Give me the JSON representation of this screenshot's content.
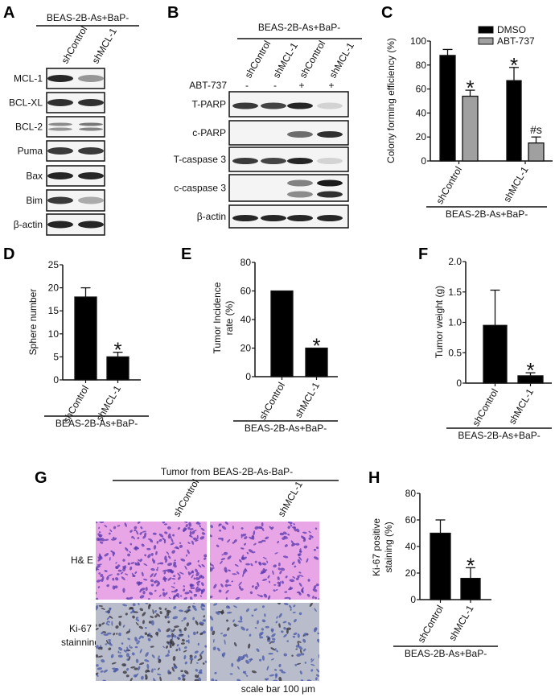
{
  "panel_labels": {
    "A": "A",
    "B": "B",
    "C": "C",
    "D": "D",
    "E": "E",
    "F": "F",
    "G": "G",
    "H": "H"
  },
  "group_label": "BEAS-2B-As+BaP-",
  "lanes": [
    "shControl",
    "shMCL-1"
  ],
  "blot_A": {
    "rows": [
      {
        "label": "MCL-1",
        "bands": [
          0.95,
          0.4
        ]
      },
      {
        "label": "BCL-XL",
        "bands": [
          0.9,
          0.9
        ]
      },
      {
        "label": "BCL-2",
        "bands": [
          0.45,
          0.55
        ]
      },
      {
        "label": "Puma",
        "bands": [
          0.85,
          0.85
        ]
      },
      {
        "label": "Bax",
        "bands": [
          0.95,
          0.95
        ]
      },
      {
        "label": "Bim",
        "bands": [
          0.85,
          0.3
        ]
      },
      {
        "label": "β-actin",
        "bands": [
          0.95,
          0.95
        ]
      }
    ]
  },
  "blot_B": {
    "lanes": [
      "shControl",
      "shMCL-1",
      "shControl",
      "shMCL-1"
    ],
    "treatment_label": "ABT-737",
    "treatment": [
      "-",
      "-",
      "+",
      "+"
    ],
    "rows": [
      {
        "label": "T-PARP",
        "bands": [
          0.85,
          0.8,
          0.95,
          0.1
        ]
      },
      {
        "label": "c-PARP",
        "bands": [
          0,
          0,
          0.6,
          0.9
        ]
      },
      {
        "label": "T-caspase 3",
        "bands": [
          0.85,
          0.8,
          0.95,
          0.1
        ]
      },
      {
        "label": "c-caspase 3",
        "bands": [
          0,
          0,
          0.5,
          1.0
        ]
      },
      {
        "label": "β-actin",
        "bands": [
          0.95,
          0.95,
          0.95,
          0.95
        ]
      }
    ]
  },
  "chart_data": [
    {
      "id": "C",
      "type": "bar",
      "ylabel": "Colony forming efficiency (%)",
      "ylim": [
        0,
        100
      ],
      "yticks": [
        0,
        20,
        40,
        60,
        80,
        100
      ],
      "categories": [
        "shControl",
        "shMCL-1"
      ],
      "xlabel": "BEAS-2B-As+BaP-",
      "legend": "top-right",
      "series": [
        {
          "name": "DMSO",
          "color": "#000000",
          "values": [
            88,
            67
          ],
          "errors": [
            5,
            11
          ],
          "annotations": [
            "",
            "*"
          ]
        },
        {
          "name": "ABT-737",
          "color": "#a0a0a0",
          "values": [
            54,
            15
          ],
          "errors": [
            5,
            5
          ],
          "annotations": [
            "*",
            "#s"
          ]
        }
      ]
    },
    {
      "id": "D",
      "type": "bar",
      "ylabel": "Sphere number",
      "ylim": [
        0,
        25
      ],
      "yticks": [
        0,
        5,
        10,
        15,
        20,
        25
      ],
      "categories": [
        "shControl",
        "shMCL-1"
      ],
      "xlabel": "BEAS-2B-As+BaP-",
      "series": [
        {
          "color": "#000000",
          "values": [
            18,
            5
          ],
          "errors": [
            2,
            1
          ],
          "annotations": [
            "",
            "*"
          ]
        }
      ]
    },
    {
      "id": "E",
      "type": "bar",
      "ylabel": [
        "Tumor Incidence",
        "rate (%)"
      ],
      "ylim": [
        0,
        80
      ],
      "yticks": [
        0,
        20,
        40,
        60,
        80
      ],
      "categories": [
        "shControl",
        "shMCL-1"
      ],
      "xlabel": "BEAS-2B-As+BaP-",
      "series": [
        {
          "color": "#000000",
          "values": [
            60,
            20
          ],
          "errors": [
            0,
            0
          ],
          "annotations": [
            "",
            "*"
          ]
        }
      ]
    },
    {
      "id": "F",
      "type": "bar",
      "ylabel": "Tumor weight (g)",
      "ylim": [
        0,
        2.0
      ],
      "yticks": [
        "0",
        "0.5",
        "1.0",
        "1.5",
        "2.0"
      ],
      "categories": [
        "shControl",
        "shMCL-1"
      ],
      "xlabel": "BEAS-2B-As+BaP-",
      "series": [
        {
          "color": "#000000",
          "values": [
            0.95,
            0.12
          ],
          "errors": [
            0.58,
            0.05
          ],
          "annotations": [
            "",
            "*"
          ]
        }
      ]
    },
    {
      "id": "H",
      "type": "bar",
      "ylabel": [
        "Ki-67 positive",
        "staining (%)"
      ],
      "ylim": [
        0,
        80
      ],
      "yticks": [
        0,
        20,
        40,
        60,
        80
      ],
      "categories": [
        "shControl",
        "shMCL-1"
      ],
      "xlabel": "BEAS-2B-As+BaP-",
      "series": [
        {
          "color": "#000000",
          "values": [
            50,
            16
          ],
          "errors": [
            10,
            8
          ],
          "annotations": [
            "",
            "*"
          ]
        }
      ]
    }
  ],
  "panel_G": {
    "title": "Tumor from BEAS-2B-As-BaP-",
    "columns": [
      "shControl",
      "shMCL-1"
    ],
    "rows": [
      "H& E",
      [
        "Ki-67",
        "stainning"
      ]
    ],
    "scale_bar": "scale bar 100 μm",
    "colors": {
      "he_bg": "#e9a6e6",
      "he_nuclei": "#5a3aae",
      "ki_bg": "#b9bccb",
      "ki_nuclei": "#4a5aa8",
      "ki_positive": "#33303a"
    }
  }
}
